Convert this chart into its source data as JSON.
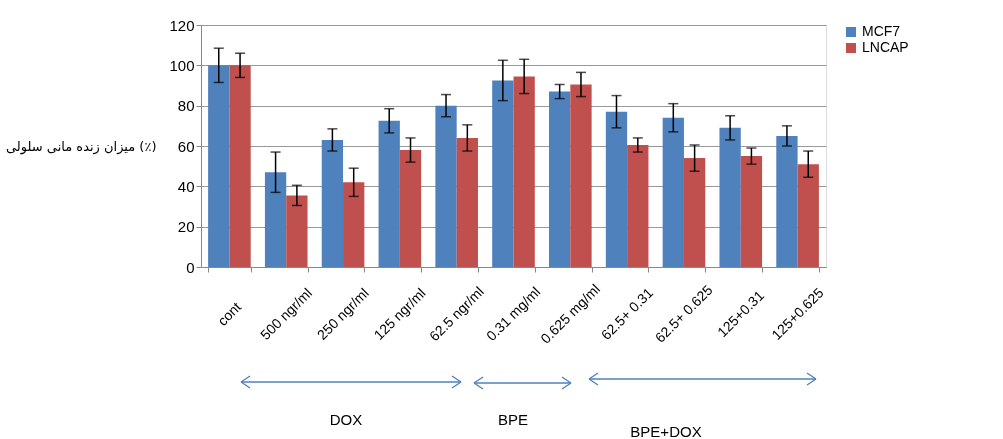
{
  "chart_data": {
    "type": "bar",
    "ylabel": "میزان زنده مانی سلولی (٪)",
    "categories": [
      "cont",
      "500 ngr/ml",
      "250 ngr/ml",
      "125 ngr/ml",
      "62.5 ngr/ml",
      "0.31 mg/ml",
      "0.625 mg/ml",
      "62.5+ 0.31",
      "62.5+ 0.625",
      "125+0.31",
      "125+0.625"
    ],
    "series": [
      {
        "name": "MCF7",
        "color": "#4f81bd",
        "values": [
          100,
          47,
          63,
          72.5,
          80,
          92.5,
          87,
          77,
          74,
          69,
          65
        ],
        "errors": [
          8.5,
          10,
          5.5,
          6,
          5.5,
          10,
          3.5,
          8,
          7,
          6,
          5
        ]
      },
      {
        "name": "LNCAP",
        "color": "#c0504d",
        "values": [
          100,
          35.5,
          42,
          58,
          64,
          94.5,
          90.5,
          60.5,
          54,
          55,
          51
        ],
        "errors": [
          6,
          5,
          7,
          6,
          6.5,
          8.5,
          6,
          3.5,
          6.5,
          4,
          6.5
        ]
      }
    ],
    "ylim": [
      0,
      120
    ],
    "yticks": [
      0,
      20,
      40,
      60,
      80,
      100,
      120
    ],
    "grid": "y",
    "legend": "right",
    "annotations": [
      "DOX",
      "BPE",
      "BPE+DOX"
    ]
  }
}
